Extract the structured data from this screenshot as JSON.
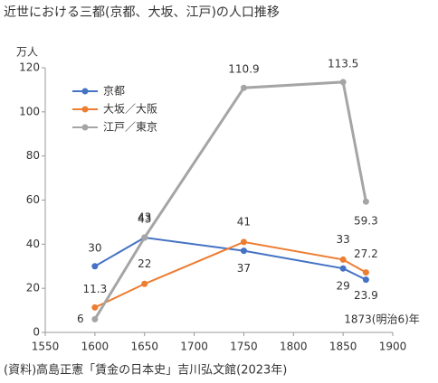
{
  "chart_data": {
    "type": "line",
    "title": "近世における三都(京都、大坂、江戸)の人口推移",
    "y_axis_label": "万人",
    "annotation": "1873(明治6)年",
    "source": "(資料)高島正憲「賃金の日本史」吉川弘文館(2023年)",
    "x": [
      1600,
      1650,
      1750,
      1850,
      1873
    ],
    "series": [
      {
        "name": "京都",
        "color": "#4472c4",
        "values": [
          30,
          43,
          37,
          29,
          23.9
        ]
      },
      {
        "name": "大坂／大阪",
        "color": "#ed7d31",
        "values": [
          11.3,
          22,
          41,
          33,
          27.2
        ]
      },
      {
        "name": "江戸／東京",
        "color": "#a5a5a5",
        "values": [
          6,
          43,
          110.9,
          113.5,
          59.3
        ]
      }
    ],
    "xlim": [
      1550,
      1900
    ],
    "xticks": [
      1550,
      1600,
      1650,
      1700,
      1750,
      1800,
      1850,
      1900
    ],
    "ylim": [
      0,
      120
    ],
    "yticks": [
      0,
      20,
      40,
      60,
      80,
      100,
      120
    ],
    "grid": false,
    "legend": "upper left"
  }
}
